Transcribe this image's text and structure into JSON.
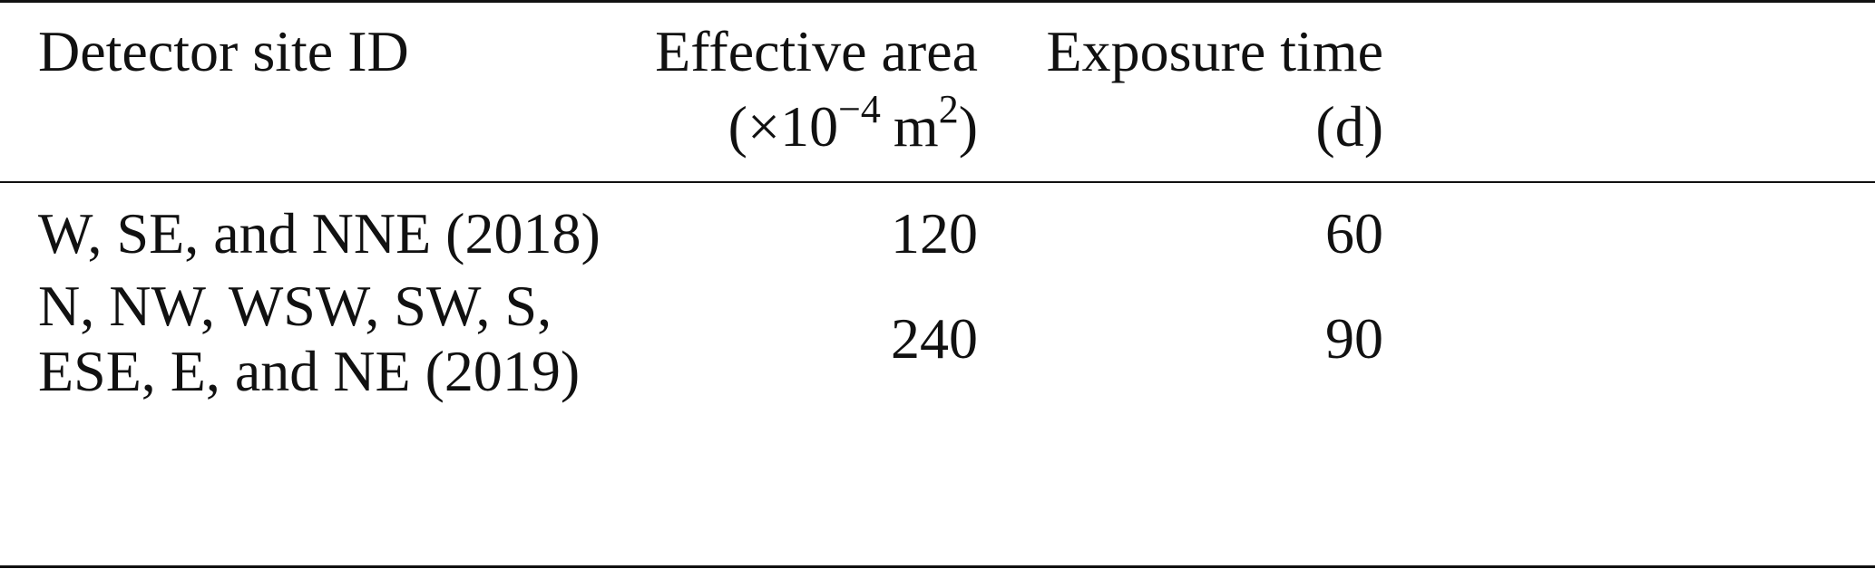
{
  "table": {
    "columns": [
      {
        "label": "Detector site ID"
      },
      {
        "label": "Effective area",
        "unit": [
          "(×10",
          "−4",
          "m",
          "2",
          ")"
        ]
      },
      {
        "label": "Exposure time",
        "unit": [
          "(d)"
        ]
      }
    ],
    "rows": [
      {
        "site": [
          "W, SE, and NNE (2018)"
        ],
        "area": 120,
        "time": 60
      },
      {
        "site": [
          "N, NW, WSW, SW, S,",
          "ESE, E, and NE (2019)"
        ],
        "area": 240,
        "time": 90
      }
    ]
  }
}
